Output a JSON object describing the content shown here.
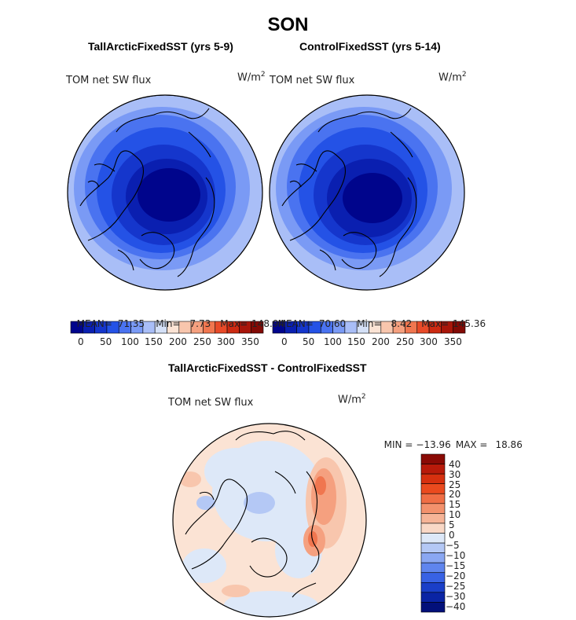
{
  "figure": {
    "title": "SON",
    "panel_left": {
      "title": "TallArcticFixedSST (yrs 5-9)",
      "variable": "TOM net SW flux",
      "units_base": "W/m",
      "units_sup": "2",
      "stats": {
        "mean_label": "MEAN=",
        "mean": "71.35",
        "min_label": "Min=",
        "min": "7.73",
        "max_label": "Max=",
        "max": "148.94"
      }
    },
    "panel_right": {
      "title": "ControlFixedSST (yrs 5-14)",
      "variable": "TOM net SW flux",
      "units_base": "W/m",
      "units_sup": "2",
      "stats": {
        "mean_label": "MEAN=",
        "mean": "70.60",
        "min_label": "Min=",
        "min": "8.42",
        "max_label": "Max=",
        "max": "145.36"
      }
    },
    "panel_diff": {
      "title": "TallArcticFixedSST - ControlFixedSST",
      "variable": "TOM net SW flux",
      "units_base": "W/m",
      "units_sup": "2",
      "stats": {
        "min_label": "MIN =",
        "min": "−13.96",
        "max_label": "MAX =",
        "max": "18.86"
      }
    },
    "abs_colorbar": {
      "labels": [
        "0",
        "50",
        "100",
        "150",
        "200",
        "250",
        "300",
        "350"
      ],
      "colors": [
        "#00058c",
        "#0a1fb0",
        "#1536cc",
        "#2452e6",
        "#4a73f0",
        "#7a9af5",
        "#a9bef7",
        "#d4e0f7",
        "#fbe3d4",
        "#f8c6ad",
        "#f5a07f",
        "#f0764f",
        "#e84a28",
        "#cc2a12",
        "#a8160a",
        "#820a05"
      ]
    },
    "diff_colorbar": {
      "labels": [
        "40",
        "30",
        "25",
        "20",
        "15",
        "10",
        "5",
        "0",
        "−5",
        "−10",
        "−15",
        "−20",
        "−25",
        "−30",
        "−40"
      ],
      "colors": [
        "#8a0a05",
        "#b81a0a",
        "#d6300f",
        "#ea4a1e",
        "#f06e45",
        "#f3916c",
        "#f6b497",
        "#f9d8c6",
        "#dde8f8",
        "#b4c8f5",
        "#8aa7f2",
        "#5f85ee",
        "#3862e4",
        "#1a3fc8",
        "#0a24a4",
        "#02107a"
      ]
    },
    "map_colors": {
      "abs_outer": "#a9bef7",
      "abs_ring1": "#7a9af5",
      "abs_ring2": "#4a73f0",
      "abs_ring3": "#2452e6",
      "abs_ring4": "#1536cc",
      "abs_center": "#0a1fb0",
      "abs_core": "#00058c",
      "diff_base": "#fbe3d4",
      "diff_blue": "#dde8f8",
      "diff_pos1": "#f8c6ad",
      "diff_pos2": "#f5a07f",
      "diff_pos3": "#f0764f",
      "diff_neg1": "#b4c8f5",
      "coast": "#000000"
    }
  }
}
